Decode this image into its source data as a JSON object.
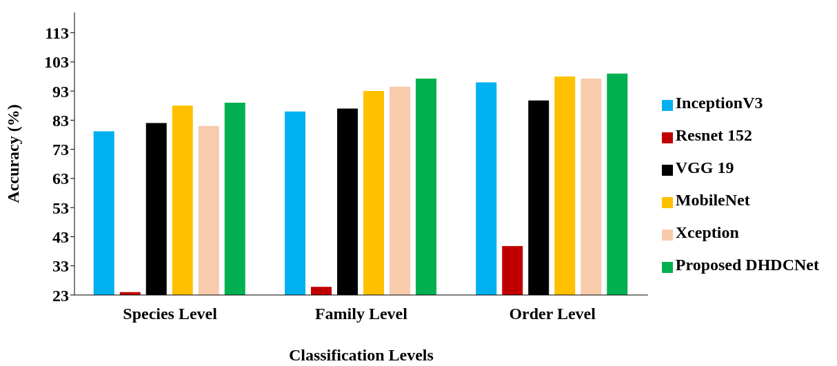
{
  "chart_data": {
    "type": "bar",
    "xlabel": "Classification Levels",
    "ylabel": "Accuracy (%)",
    "categories": [
      "Species Level",
      "Family Level",
      "Order Level"
    ],
    "series": [
      {
        "name": "InceptionV3",
        "color": "#00b0f0",
        "values": [
          79.2,
          86,
          96
        ]
      },
      {
        "name": "Resnet 152",
        "color": "#c00000",
        "values": [
          24,
          25.8,
          39.8
        ]
      },
      {
        "name": "VGG 19",
        "color": "#000000",
        "values": [
          82,
          87,
          89.8
        ]
      },
      {
        "name": "MobileNet",
        "color": "#ffc000",
        "values": [
          88,
          93,
          98
        ]
      },
      {
        "name": "Xception",
        "color": "#f8cbad",
        "values": [
          81,
          94.5,
          97.3
        ]
      },
      {
        "name": "Proposed DHDCNet",
        "color": "#00b050",
        "values": [
          89,
          97.3,
          99
        ]
      }
    ],
    "ylim": [
      23,
      120
    ],
    "yticks": [
      23,
      33,
      43,
      53,
      63,
      73,
      83,
      93,
      103,
      113
    ],
    "grid": false,
    "legend": "right"
  }
}
